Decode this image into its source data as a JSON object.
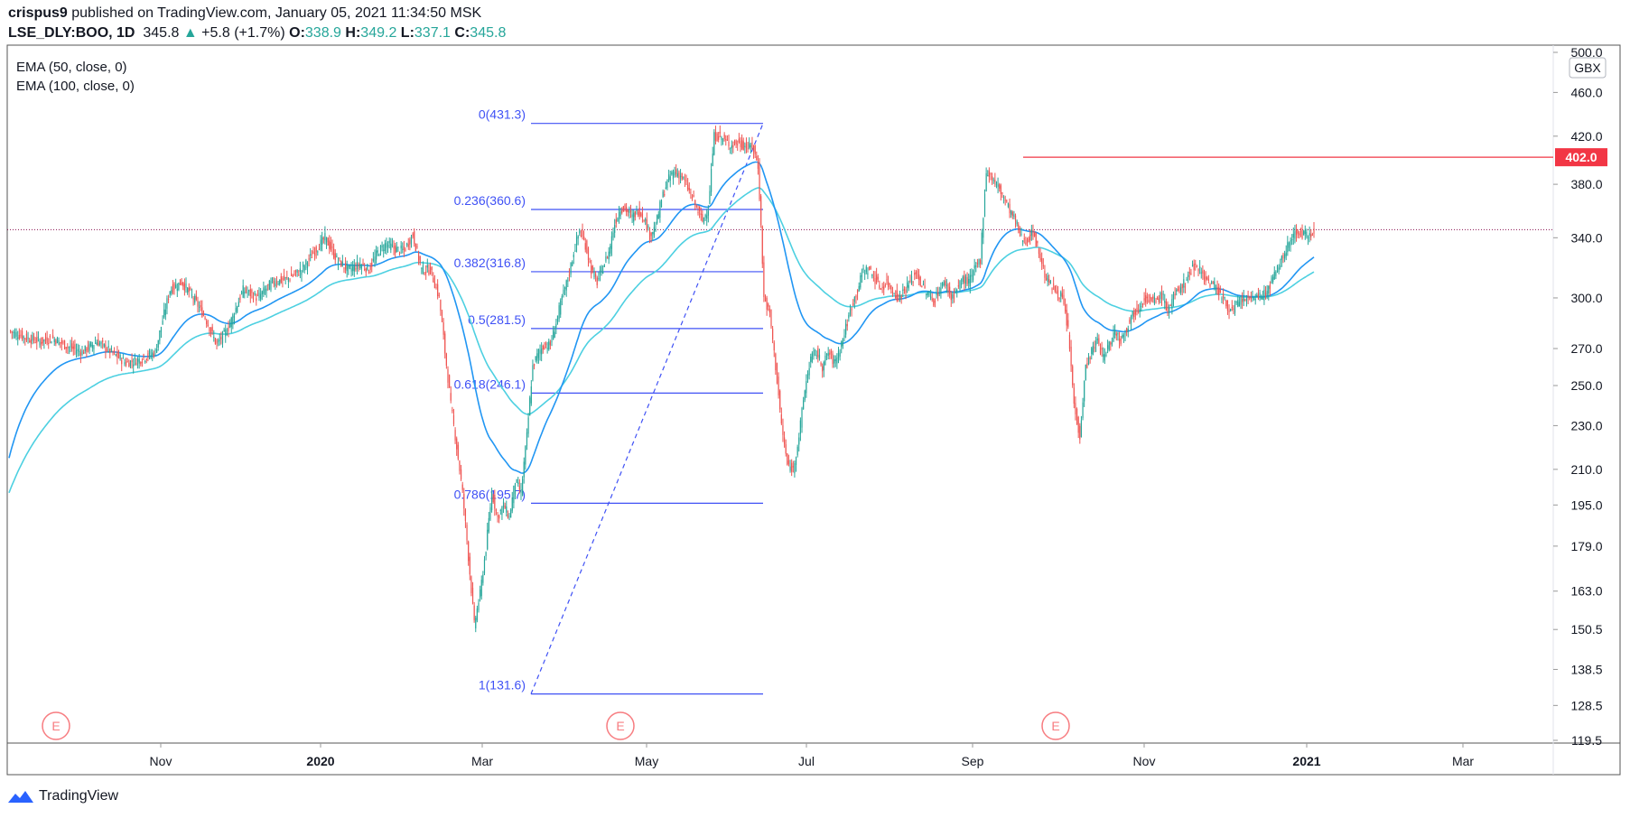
{
  "header": {
    "author": "crispus9",
    "published_text": " published on TradingView.com, January 05, 2021 11:34:50 MSK",
    "symbol": "LSE_DLY:BOO, 1D",
    "last": "345.8",
    "change_arrow": "▲",
    "change": "+5.8 (+1.7%)",
    "o_label": "O:",
    "o": "338.9",
    "h_label": "H:",
    "h": "349.2",
    "l_label": "L:",
    "l": "337.1",
    "c_label": "C:",
    "c": "345.8"
  },
  "legend": [
    "EMA (50, close, 0)",
    "EMA (100, close, 0)"
  ],
  "currency_badge": "GBX",
  "brand": "TradingView",
  "colors": {
    "up": "#26a69a",
    "down": "#ef5350",
    "ema50": "#2196f3",
    "ema100": "#4dd0e1",
    "fib": "#3f51f5",
    "hline": "#f23645",
    "price_line": "#880e4f",
    "earnings": "#f77c80"
  },
  "chart_data": {
    "type": "candlestick",
    "x_tick_labels": [
      "Nov",
      "2020",
      "Mar",
      "May",
      "Jul",
      "Sep",
      "Nov",
      "2021",
      "Mar"
    ],
    "x_tick_bold": [
      false,
      true,
      false,
      false,
      false,
      false,
      false,
      true,
      false
    ],
    "y_scale": "log",
    "y_tick_labels": [
      "500.0",
      "460.0",
      "420.0",
      "380.0",
      "340.0",
      "300.0",
      "270.0",
      "250.0",
      "230.0",
      "210.0",
      "195.0",
      "179.0",
      "163.0",
      "150.5",
      "138.5",
      "128.5",
      "119.5"
    ],
    "y_range": [
      119.5,
      500
    ],
    "last_price": 345.8,
    "horizontal_line": {
      "value": 402.0,
      "label": "402.0"
    },
    "fibonacci": [
      {
        "label": "0(431.3)",
        "value": 431.3
      },
      {
        "label": "0.236(360.6)",
        "value": 360.6
      },
      {
        "label": "0.382(316.8)",
        "value": 316.8
      },
      {
        "label": "0.5(281.5)",
        "value": 281.5
      },
      {
        "label": "0.618(246.1)",
        "value": 246.1
      },
      {
        "label": "0.786(195.7)",
        "value": 195.7
      },
      {
        "label": "1(131.6)",
        "value": 131.6
      }
    ],
    "fib_trend": {
      "from": 131.6,
      "to": 431.3
    },
    "earnings_marker": "E",
    "earnings_count": 3,
    "close_path": [
      [
        0,
        280
      ],
      [
        12,
        276
      ],
      [
        22,
        274
      ],
      [
        30,
        276
      ],
      [
        40,
        271
      ],
      [
        50,
        268
      ],
      [
        60,
        274
      ],
      [
        70,
        268
      ],
      [
        80,
        262
      ],
      [
        90,
        264
      ],
      [
        100,
        268
      ],
      [
        110,
        305
      ],
      [
        118,
        310
      ],
      [
        126,
        300
      ],
      [
        134,
        288
      ],
      [
        142,
        272
      ],
      [
        150,
        282
      ],
      [
        160,
        305
      ],
      [
        170,
        300
      ],
      [
        180,
        310
      ],
      [
        190,
        312
      ],
      [
        200,
        318
      ],
      [
        210,
        332
      ],
      [
        216,
        340
      ],
      [
        224,
        325
      ],
      [
        232,
        318
      ],
      [
        240,
        322
      ],
      [
        246,
        318
      ],
      [
        252,
        330
      ],
      [
        258,
        336
      ],
      [
        264,
        332
      ],
      [
        270,
        331
      ],
      [
        276,
        342
      ],
      [
        282,
        318
      ],
      [
        288,
        318
      ],
      [
        294,
        300
      ],
      [
        298,
        268
      ],
      [
        302,
        240
      ],
      [
        306,
        220
      ],
      [
        310,
        200
      ],
      [
        314,
        175
      ],
      [
        318,
        152
      ],
      [
        322,
        162
      ],
      [
        326,
        178
      ],
      [
        330,
        200
      ],
      [
        334,
        190
      ],
      [
        338,
        195
      ],
      [
        342,
        190
      ],
      [
        346,
        205
      ],
      [
        350,
        200
      ],
      [
        354,
        225
      ],
      [
        358,
        260
      ],
      [
        362,
        268
      ],
      [
        366,
        272
      ],
      [
        370,
        272
      ],
      [
        374,
        285
      ],
      [
        378,
        300
      ],
      [
        382,
        312
      ],
      [
        386,
        330
      ],
      [
        390,
        345
      ],
      [
        394,
        335
      ],
      [
        398,
        318
      ],
      [
        402,
        310
      ],
      [
        406,
        320
      ],
      [
        410,
        330
      ],
      [
        414,
        350
      ],
      [
        418,
        362
      ],
      [
        422,
        360
      ],
      [
        426,
        355
      ],
      [
        430,
        360
      ],
      [
        434,
        355
      ],
      [
        438,
        342
      ],
      [
        442,
        348
      ],
      [
        446,
        368
      ],
      [
        450,
        382
      ],
      [
        454,
        390
      ],
      [
        458,
        388
      ],
      [
        462,
        382
      ],
      [
        466,
        372
      ],
      [
        470,
        362
      ],
      [
        474,
        352
      ],
      [
        478,
        362
      ],
      [
        482,
        420
      ],
      [
        486,
        420
      ],
      [
        490,
        415
      ],
      [
        494,
        412
      ],
      [
        498,
        414
      ],
      [
        502,
        412
      ],
      [
        506,
        410
      ],
      [
        508,
        412
      ],
      [
        512,
        395
      ],
      [
        516,
        300
      ],
      [
        520,
        290
      ],
      [
        524,
        260
      ],
      [
        528,
        230
      ],
      [
        532,
        212
      ],
      [
        536,
        210
      ],
      [
        540,
        225
      ],
      [
        544,
        248
      ],
      [
        548,
        265
      ],
      [
        552,
        268
      ],
      [
        556,
        260
      ],
      [
        560,
        268
      ],
      [
        564,
        262
      ],
      [
        568,
        270
      ],
      [
        572,
        282
      ],
      [
        576,
        295
      ],
      [
        580,
        305
      ],
      [
        584,
        318
      ],
      [
        588,
        318
      ],
      [
        592,
        312
      ],
      [
        596,
        306
      ],
      [
        600,
        310
      ],
      [
        604,
        305
      ],
      [
        608,
        300
      ],
      [
        612,
        305
      ],
      [
        616,
        310
      ],
      [
        620,
        316
      ],
      [
        624,
        308
      ],
      [
        628,
        302
      ],
      [
        632,
        298
      ],
      [
        636,
        305
      ],
      [
        640,
        310
      ],
      [
        644,
        300
      ],
      [
        648,
        305
      ],
      [
        652,
        312
      ],
      [
        656,
        310
      ],
      [
        660,
        318
      ],
      [
        664,
        325
      ],
      [
        668,
        390
      ],
      [
        672,
        385
      ],
      [
        676,
        378
      ],
      [
        680,
        370
      ],
      [
        684,
        360
      ],
      [
        688,
        352
      ],
      [
        692,
        340
      ],
      [
        696,
        338
      ],
      [
        700,
        344
      ],
      [
        704,
        330
      ],
      [
        708,
        315
      ],
      [
        712,
        308
      ],
      [
        716,
        304
      ],
      [
        720,
        300
      ],
      [
        724,
        280
      ],
      [
        728,
        240
      ],
      [
        732,
        225
      ],
      [
        736,
        260
      ],
      [
        740,
        268
      ],
      [
        744,
        275
      ],
      [
        748,
        265
      ],
      [
        752,
        272
      ],
      [
        756,
        280
      ],
      [
        760,
        275
      ],
      [
        764,
        282
      ],
      [
        768,
        290
      ],
      [
        772,
        294
      ],
      [
        776,
        300
      ],
      [
        780,
        298
      ],
      [
        784,
        298
      ],
      [
        788,
        302
      ],
      [
        792,
        292
      ],
      [
        796,
        300
      ],
      [
        800,
        306
      ],
      [
        804,
        310
      ],
      [
        808,
        318
      ],
      [
        812,
        322
      ],
      [
        816,
        315
      ],
      [
        820,
        310
      ],
      [
        824,
        308
      ],
      [
        828,
        302
      ],
      [
        832,
        296
      ],
      [
        836,
        292
      ],
      [
        840,
        296
      ],
      [
        844,
        300
      ],
      [
        848,
        298
      ],
      [
        852,
        302
      ],
      [
        856,
        300
      ],
      [
        860,
        305
      ],
      [
        864,
        312
      ],
      [
        868,
        320
      ],
      [
        872,
        330
      ],
      [
        876,
        338
      ],
      [
        880,
        345
      ],
      [
        884,
        342
      ],
      [
        888,
        342
      ],
      [
        892,
        345.8
      ]
    ]
  }
}
